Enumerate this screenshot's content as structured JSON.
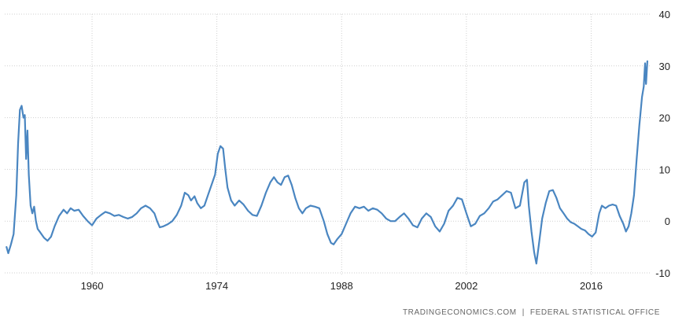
{
  "source": {
    "site": "TRADINGECONOMICS.COM",
    "separator": "|",
    "agency": "FEDERAL STATISTICAL OFFICE"
  },
  "colors": {
    "line": "#4a86c1",
    "grid": "#cfcfcf",
    "tick_text": "#222222",
    "source_text": "#666666",
    "background": "#ffffff"
  },
  "chart_data": {
    "type": "line",
    "title": "",
    "xlabel": "",
    "ylabel": "",
    "xlim": [
      1950.2,
      2022.4
    ],
    "ylim": [
      -10,
      40
    ],
    "x_ticks": [
      1960,
      1974,
      1988,
      2002,
      2016
    ],
    "y_ticks": [
      -10,
      0,
      10,
      20,
      30,
      40
    ],
    "grid": true,
    "legend": "none",
    "series": [
      {
        "values": [
          [
            1950.4,
            -5.0
          ],
          [
            1950.6,
            -6.2
          ],
          [
            1950.9,
            -4.5
          ],
          [
            1951.2,
            -2.5
          ],
          [
            1951.5,
            5.0
          ],
          [
            1951.7,
            15.0
          ],
          [
            1951.9,
            21.5
          ],
          [
            1952.1,
            22.3
          ],
          [
            1952.3,
            20.0
          ],
          [
            1952.45,
            20.5
          ],
          [
            1952.6,
            12.0
          ],
          [
            1952.75,
            17.5
          ],
          [
            1952.9,
            9.0
          ],
          [
            1953.1,
            3.0
          ],
          [
            1953.3,
            1.5
          ],
          [
            1953.5,
            2.8
          ],
          [
            1953.7,
            0.0
          ],
          [
            1953.9,
            -1.5
          ],
          [
            1954.2,
            -2.2
          ],
          [
            1954.6,
            -3.2
          ],
          [
            1955.0,
            -3.8
          ],
          [
            1955.4,
            -3.0
          ],
          [
            1955.8,
            -1.0
          ],
          [
            1956.3,
            1.0
          ],
          [
            1956.8,
            2.2
          ],
          [
            1957.2,
            1.5
          ],
          [
            1957.6,
            2.5
          ],
          [
            1958.0,
            2.0
          ],
          [
            1958.5,
            2.2
          ],
          [
            1959.0,
            1.0
          ],
          [
            1959.5,
            0.0
          ],
          [
            1960.0,
            -0.8
          ],
          [
            1960.5,
            0.5
          ],
          [
            1961.0,
            1.2
          ],
          [
            1961.5,
            1.8
          ],
          [
            1962.0,
            1.5
          ],
          [
            1962.5,
            1.0
          ],
          [
            1963.0,
            1.2
          ],
          [
            1963.5,
            0.8
          ],
          [
            1964.0,
            0.5
          ],
          [
            1964.5,
            0.8
          ],
          [
            1965.0,
            1.5
          ],
          [
            1965.5,
            2.5
          ],
          [
            1966.0,
            3.0
          ],
          [
            1966.5,
            2.5
          ],
          [
            1967.0,
            1.5
          ],
          [
            1967.3,
            0.0
          ],
          [
            1967.6,
            -1.2
          ],
          [
            1968.0,
            -1.0
          ],
          [
            1968.5,
            -0.6
          ],
          [
            1969.0,
            0.0
          ],
          [
            1969.5,
            1.2
          ],
          [
            1970.0,
            3.0
          ],
          [
            1970.4,
            5.5
          ],
          [
            1970.8,
            5.0
          ],
          [
            1971.1,
            4.0
          ],
          [
            1971.5,
            4.8
          ],
          [
            1971.8,
            3.5
          ],
          [
            1972.2,
            2.5
          ],
          [
            1972.6,
            3.0
          ],
          [
            1973.0,
            5.0
          ],
          [
            1973.5,
            7.5
          ],
          [
            1973.8,
            9.0
          ],
          [
            1974.1,
            13.0
          ],
          [
            1974.4,
            14.5
          ],
          [
            1974.7,
            14.0
          ],
          [
            1974.95,
            10.0
          ],
          [
            1975.2,
            6.5
          ],
          [
            1975.6,
            4.0
          ],
          [
            1976.0,
            3.0
          ],
          [
            1976.5,
            4.0
          ],
          [
            1977.0,
            3.2
          ],
          [
            1977.5,
            2.0
          ],
          [
            1978.0,
            1.2
          ],
          [
            1978.5,
            1.0
          ],
          [
            1979.0,
            3.0
          ],
          [
            1979.5,
            5.5
          ],
          [
            1980.0,
            7.5
          ],
          [
            1980.4,
            8.5
          ],
          [
            1980.8,
            7.5
          ],
          [
            1981.2,
            7.0
          ],
          [
            1981.6,
            8.5
          ],
          [
            1982.0,
            8.8
          ],
          [
            1982.4,
            7.0
          ],
          [
            1982.8,
            4.5
          ],
          [
            1983.2,
            2.5
          ],
          [
            1983.6,
            1.5
          ],
          [
            1984.0,
            2.5
          ],
          [
            1984.5,
            3.0
          ],
          [
            1985.0,
            2.8
          ],
          [
            1985.5,
            2.5
          ],
          [
            1986.0,
            0.0
          ],
          [
            1986.4,
            -2.5
          ],
          [
            1986.8,
            -4.2
          ],
          [
            1987.1,
            -4.5
          ],
          [
            1987.5,
            -3.5
          ],
          [
            1988.0,
            -2.5
          ],
          [
            1988.5,
            -0.5
          ],
          [
            1989.0,
            1.5
          ],
          [
            1989.5,
            2.8
          ],
          [
            1990.0,
            2.5
          ],
          [
            1990.5,
            2.8
          ],
          [
            1991.0,
            2.0
          ],
          [
            1991.5,
            2.5
          ],
          [
            1992.0,
            2.2
          ],
          [
            1992.5,
            1.5
          ],
          [
            1993.0,
            0.5
          ],
          [
            1993.5,
            0.0
          ],
          [
            1994.0,
            0.0
          ],
          [
            1994.5,
            0.8
          ],
          [
            1995.0,
            1.5
          ],
          [
            1995.5,
            0.5
          ],
          [
            1996.0,
            -0.8
          ],
          [
            1996.5,
            -1.2
          ],
          [
            1997.0,
            0.5
          ],
          [
            1997.5,
            1.5
          ],
          [
            1998.0,
            0.8
          ],
          [
            1998.5,
            -1.0
          ],
          [
            1999.0,
            -2.0
          ],
          [
            1999.5,
            -0.5
          ],
          [
            2000.0,
            2.0
          ],
          [
            2000.5,
            3.0
          ],
          [
            2001.0,
            4.5
          ],
          [
            2001.5,
            4.2
          ],
          [
            2002.0,
            1.5
          ],
          [
            2002.5,
            -1.0
          ],
          [
            2003.0,
            -0.5
          ],
          [
            2003.5,
            1.0
          ],
          [
            2004.0,
            1.5
          ],
          [
            2004.5,
            2.5
          ],
          [
            2005.0,
            3.8
          ],
          [
            2005.5,
            4.2
          ],
          [
            2006.0,
            5.0
          ],
          [
            2006.5,
            5.8
          ],
          [
            2007.0,
            5.5
          ],
          [
            2007.5,
            2.5
          ],
          [
            2008.0,
            3.0
          ],
          [
            2008.5,
            7.5
          ],
          [
            2008.8,
            8.0
          ],
          [
            2009.0,
            3.0
          ],
          [
            2009.3,
            -2.0
          ],
          [
            2009.6,
            -6.0
          ],
          [
            2009.85,
            -8.2
          ],
          [
            2010.1,
            -5.0
          ],
          [
            2010.5,
            0.5
          ],
          [
            2010.9,
            3.5
          ],
          [
            2011.3,
            5.8
          ],
          [
            2011.7,
            6.0
          ],
          [
            2012.1,
            4.5
          ],
          [
            2012.5,
            2.5
          ],
          [
            2012.9,
            1.5
          ],
          [
            2013.3,
            0.5
          ],
          [
            2013.7,
            -0.2
          ],
          [
            2014.1,
            -0.5
          ],
          [
            2014.5,
            -1.0
          ],
          [
            2014.9,
            -1.5
          ],
          [
            2015.3,
            -1.8
          ],
          [
            2015.7,
            -2.5
          ],
          [
            2016.1,
            -3.0
          ],
          [
            2016.5,
            -2.2
          ],
          [
            2016.9,
            1.5
          ],
          [
            2017.2,
            3.0
          ],
          [
            2017.6,
            2.5
          ],
          [
            2018.0,
            3.0
          ],
          [
            2018.4,
            3.2
          ],
          [
            2018.8,
            3.0
          ],
          [
            2019.2,
            1.0
          ],
          [
            2019.6,
            -0.5
          ],
          [
            2019.9,
            -2.0
          ],
          [
            2020.2,
            -1.0
          ],
          [
            2020.5,
            1.5
          ],
          [
            2020.8,
            5.0
          ],
          [
            2021.1,
            12.0
          ],
          [
            2021.4,
            18.5
          ],
          [
            2021.7,
            24.0
          ],
          [
            2021.9,
            26.0
          ],
          [
            2022.05,
            30.5
          ],
          [
            2022.15,
            26.5
          ],
          [
            2022.3,
            30.9
          ]
        ]
      }
    ]
  }
}
